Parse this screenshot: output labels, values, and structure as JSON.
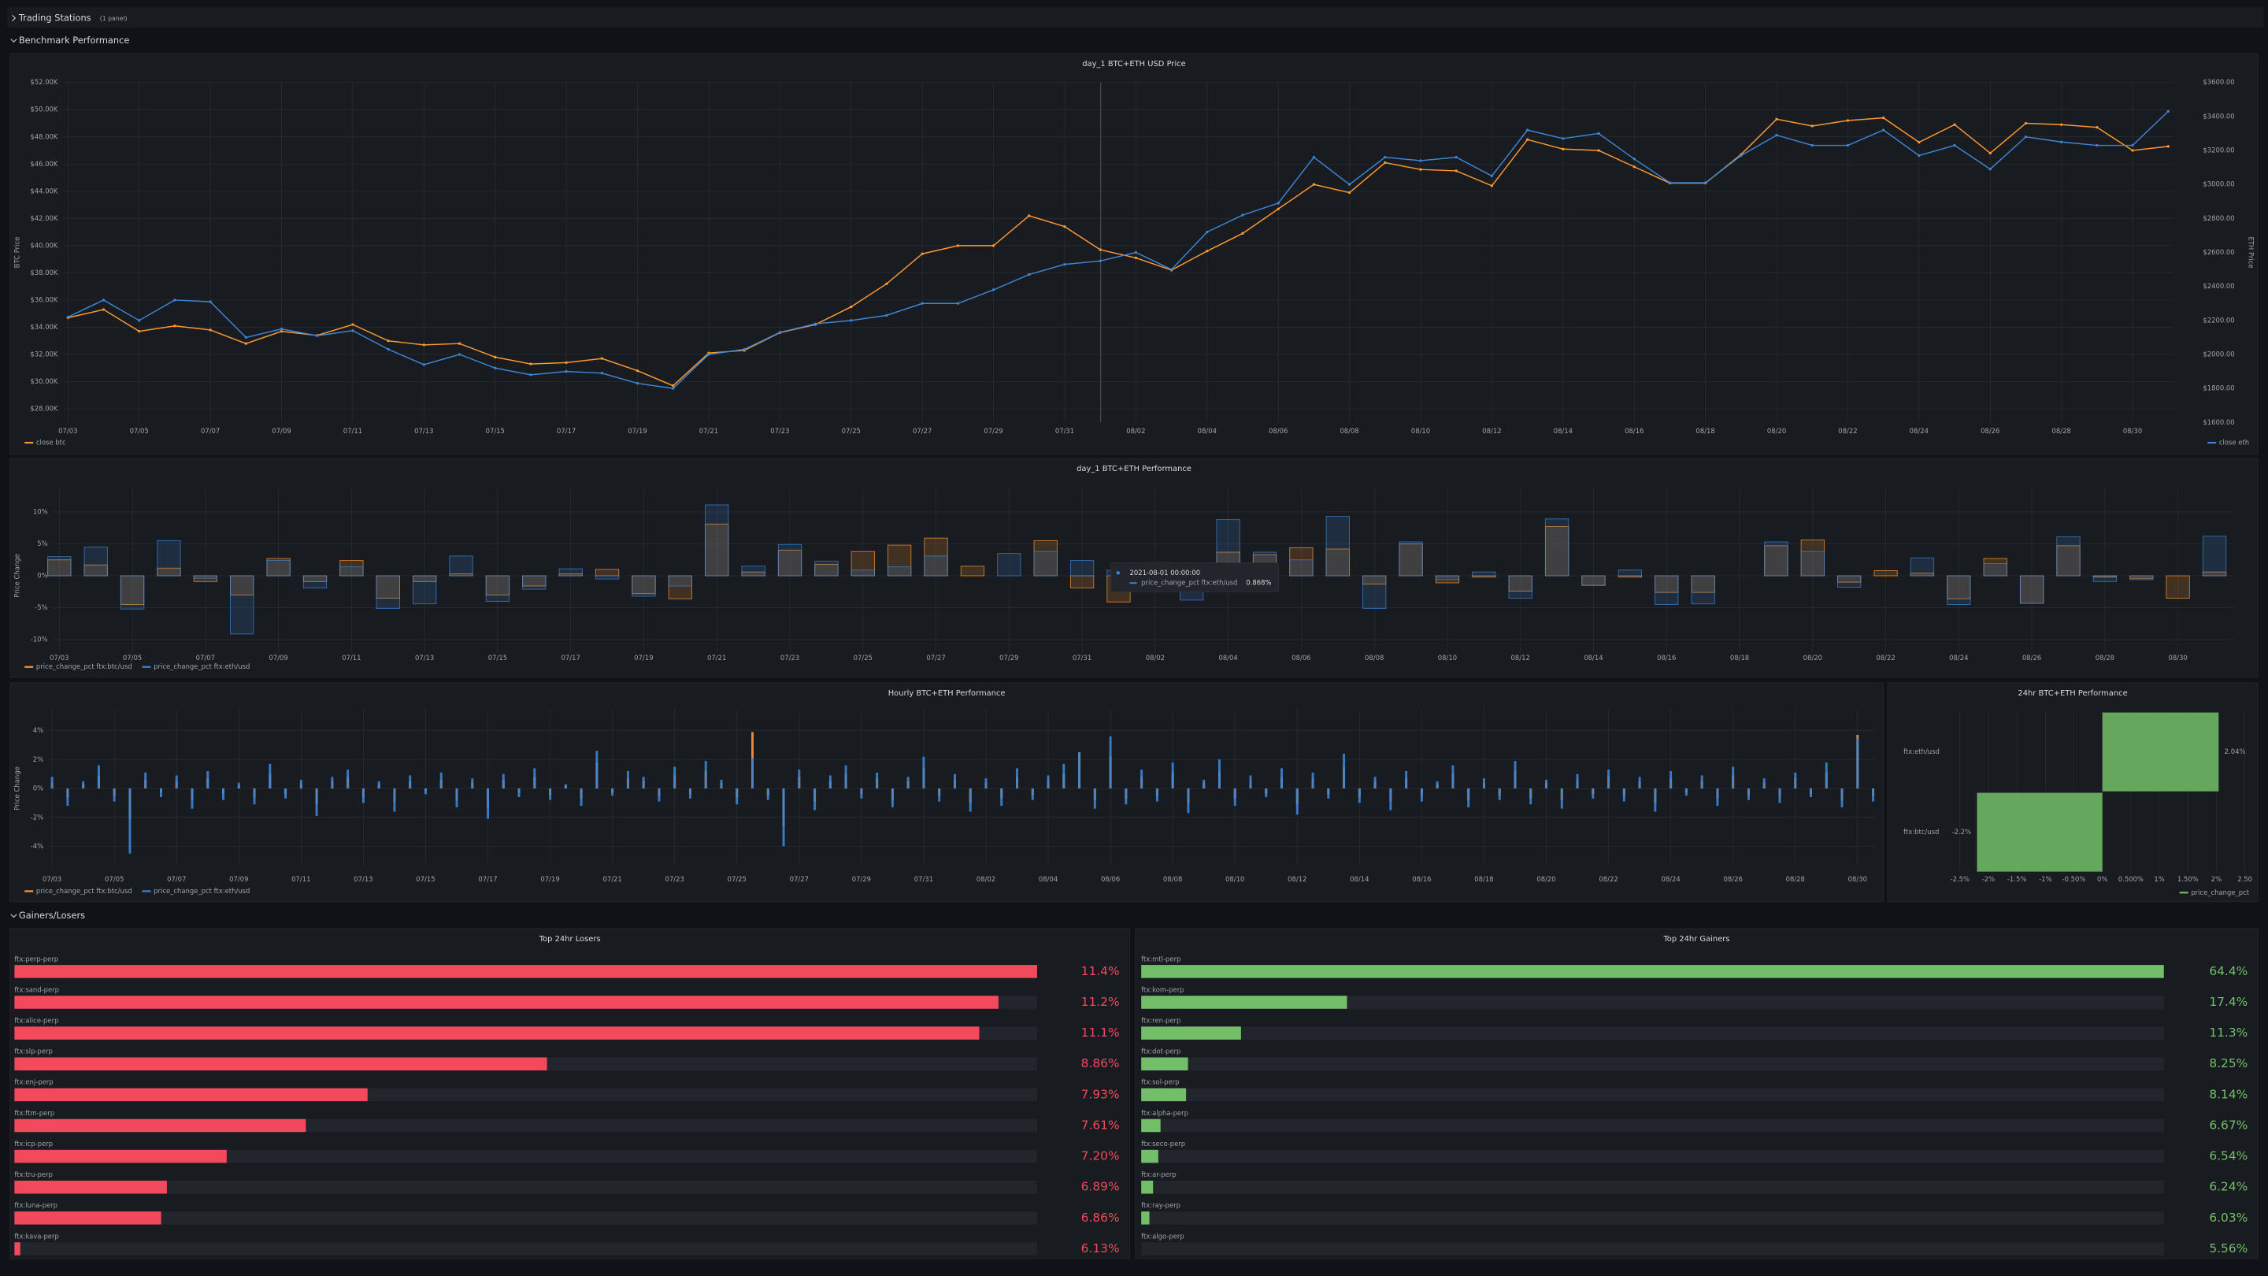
{
  "rows": [
    {
      "title": "Trading Stations",
      "note": "(1 panel)"
    },
    {
      "title": "Benchmark Performance"
    },
    {
      "title": "Gainers/Losers"
    }
  ],
  "chart_data": [
    {
      "type": "line",
      "title": "day_1 BTC+ETH USD Price",
      "ylabel": "BTC Price",
      "y2label": "ETH Price",
      "grid": true,
      "categories": [
        "07/03",
        null,
        "07/05",
        null,
        "07/07",
        null,
        "07/09",
        null,
        "07/11",
        null,
        "07/13",
        null,
        "07/15",
        null,
        "07/17",
        null,
        "07/19",
        null,
        "07/21",
        null,
        "07/23",
        null,
        "07/25",
        null,
        "07/27",
        null,
        "07/29",
        null,
        "07/31",
        null,
        "08/02",
        null,
        "08/04",
        null,
        "08/06",
        null,
        "08/08",
        null,
        "08/10",
        null,
        "08/12",
        null,
        "08/14",
        null,
        "08/16",
        null,
        "08/18",
        null,
        "08/20",
        null,
        "08/22",
        null,
        "08/24",
        null,
        "08/26",
        null,
        "08/28",
        null,
        "08/30",
        null
      ],
      "series": [
        {
          "name": "close btc",
          "color": "#ff9830",
          "values": [
            34700,
            35300,
            33700,
            34100,
            33800,
            32800,
            33700,
            33400,
            34200,
            33000,
            32700,
            32800,
            31800,
            31300,
            31400,
            31700,
            30800,
            29700,
            32100,
            32300,
            33600,
            34200,
            35500,
            37200,
            39400,
            40000,
            40000,
            42200,
            41400,
            39700,
            39100,
            38200,
            39600,
            40900,
            42700,
            44500,
            43900,
            46100,
            45600,
            45500,
            44400,
            47800,
            47100,
            47000,
            45800,
            44600,
            44600,
            46700,
            49300,
            48800,
            49200,
            49400,
            47600,
            48900,
            46800,
            49000,
            48900,
            48700,
            47000,
            47300
          ]
        },
        {
          "name": "close eth",
          "color": "#3d85d6",
          "axis": "y2",
          "values": [
            2220,
            2320,
            2200,
            2320,
            2310,
            2100,
            2150,
            2110,
            2140,
            2030,
            1940,
            2000,
            1920,
            1880,
            1900,
            1890,
            1830,
            1800,
            2000,
            2030,
            2130,
            2180,
            2200,
            2230,
            2300,
            2300,
            2380,
            2470,
            2530,
            2550,
            2600,
            2500,
            2720,
            2820,
            2890,
            3160,
            3000,
            3160,
            3140,
            3160,
            3050,
            3320,
            3270,
            3300,
            3150,
            3010,
            3010,
            3170,
            3290,
            3230,
            3230,
            3320,
            3170,
            3230,
            3090,
            3280,
            3250,
            3230,
            3230,
            3430
          ]
        }
      ],
      "ylim": [
        27000,
        52000
      ],
      "yticks": [
        {
          "value": 28000,
          "label": "$28.00K"
        },
        {
          "value": 30000,
          "label": "$30.00K"
        },
        {
          "value": 32000,
          "label": "$32.00K"
        },
        {
          "value": 34000,
          "label": "$34.00K"
        },
        {
          "value": 36000,
          "label": "$36.00K"
        },
        {
          "value": 38000,
          "label": "$38.00K"
        },
        {
          "value": 40000,
          "label": "$40.00K"
        },
        {
          "value": 42000,
          "label": "$42.00K"
        },
        {
          "value": 44000,
          "label": "$44.00K"
        },
        {
          "value": 46000,
          "label": "$46.00K"
        },
        {
          "value": 48000,
          "label": "$48.00K"
        },
        {
          "value": 50000,
          "label": "$50.00K"
        },
        {
          "value": 52000,
          "label": "$52.00K"
        }
      ],
      "y2lim": [
        1600,
        3600
      ],
      "y2ticks": [
        {
          "value": 1600,
          "label": "$1600.00"
        },
        {
          "value": 1800,
          "label": "$1800.00"
        },
        {
          "value": 2000,
          "label": "$2000.00"
        },
        {
          "value": 2200,
          "label": "$2200.00"
        },
        {
          "value": 2400,
          "label": "$2400.00"
        },
        {
          "value": 2600,
          "label": "$2600.00"
        },
        {
          "value": 2800,
          "label": "$2800.00"
        },
        {
          "value": 3000,
          "label": "$3000.00"
        },
        {
          "value": 3200,
          "label": "$3200.00"
        },
        {
          "value": 3400,
          "label": "$3400.00"
        },
        {
          "value": 3600,
          "label": "$3600.00"
        }
      ]
    },
    {
      "type": "bar",
      "title": "day_1 BTC+ETH Performance",
      "ylabel": "Price Change",
      "grid": true,
      "categories": [
        "07/03",
        null,
        "07/05",
        null,
        "07/07",
        null,
        "07/09",
        null,
        "07/11",
        null,
        "07/13",
        null,
        "07/15",
        null,
        "07/17",
        null,
        "07/19",
        null,
        "07/21",
        null,
        "07/23",
        null,
        "07/25",
        null,
        "07/27",
        null,
        "07/29",
        null,
        "07/31",
        null,
        "08/02",
        null,
        "08/04",
        null,
        "08/06",
        null,
        "08/08",
        null,
        "08/10",
        null,
        "08/12",
        null,
        "08/14",
        null,
        "08/16",
        null,
        "08/18",
        null,
        "08/20",
        null,
        "08/22",
        null,
        "08/24",
        null,
        "08/26",
        null,
        "08/28",
        null,
        "08/30",
        null
      ],
      "series": [
        {
          "name": "price_change_pct ftx:btc/usd",
          "color": "#ff9830",
          "values": [
            2.5,
            1.7,
            -4.5,
            1.2,
            -0.9,
            -3.0,
            2.7,
            -0.9,
            2.4,
            -3.5,
            -0.9,
            0.3,
            -3.0,
            -1.6,
            0.3,
            1.0,
            -2.8,
            -3.6,
            8.1,
            0.6,
            4.0,
            1.8,
            3.8,
            4.8,
            5.9,
            1.5,
            0,
            5.5,
            -1.9,
            -4.1,
            -1.5,
            -2.3,
            3.7,
            3.3,
            4.4,
            4.2,
            -1.3,
            5.0,
            -1.1,
            -0.2,
            -2.4,
            7.7,
            -1.5,
            -0.2,
            -2.6,
            -2.6,
            0,
            4.7,
            5.6,
            -1.0,
            0.8,
            0.4,
            -3.6,
            2.7,
            -4.3,
            4.7,
            -0.2,
            -0.4,
            -3.5,
            0.6
          ]
        },
        {
          "name": "price_change_pct ftx:eth/usd",
          "color": "#3d85d6",
          "values": [
            3.0,
            4.5,
            -5.2,
            5.5,
            -0.4,
            -9.1,
            2.4,
            -1.9,
            1.4,
            -5.1,
            -4.4,
            3.1,
            -4.0,
            -2.1,
            1.1,
            -0.5,
            -3.2,
            -1.6,
            11.1,
            1.5,
            4.9,
            2.3,
            0.9,
            1.4,
            3.1,
            0,
            3.5,
            3.8,
            2.4,
            0.868,
            2.0,
            -3.8,
            8.8,
            3.7,
            2.5,
            9.3,
            -5.1,
            5.3,
            -0.6,
            0.6,
            -3.5,
            8.9,
            -1.5,
            0.9,
            -4.5,
            -4.4,
            0,
            5.3,
            3.8,
            -1.8,
            0,
            2.8,
            -4.5,
            1.9,
            -4.3,
            6.1,
            -0.9,
            -0.6,
            0,
            6.2
          ]
        }
      ],
      "ylim": [
        -12,
        12
      ],
      "yticks": [
        {
          "value": 10,
          "label": "10%"
        },
        {
          "value": 5,
          "label": "5%"
        },
        {
          "value": 0,
          "label": "0%"
        },
        {
          "value": -5,
          "label": "-5%"
        },
        {
          "value": -10,
          "label": "-10%"
        }
      ],
      "tooltip": {
        "time": "2021-08-01 00:00:00",
        "value_label": "0.868%"
      }
    },
    {
      "type": "bar",
      "title": "Hourly BTC+ETH Performance",
      "ylabel": "Price Change",
      "grid": true,
      "categories": [
        "07/03",
        null,
        null,
        null,
        "07/05",
        null,
        null,
        null,
        "07/07",
        null,
        null,
        null,
        "07/09",
        null,
        null,
        null,
        "07/11",
        null,
        null,
        null,
        "07/13",
        null,
        null,
        null,
        "07/15",
        null,
        null,
        null,
        "07/17",
        null,
        null,
        null,
        "07/19",
        null,
        null,
        null,
        "07/21",
        null,
        null,
        null,
        "07/23",
        null,
        null,
        null,
        "07/25",
        null,
        null,
        null,
        "07/27",
        null,
        null,
        null,
        "07/29",
        null,
        null,
        null,
        "07/31",
        null,
        null,
        null,
        "08/02",
        null,
        null,
        null,
        "08/04",
        null,
        null,
        null,
        "08/06",
        null,
        null,
        null,
        "08/08",
        null,
        null,
        null,
        "08/10",
        null,
        null,
        null,
        "08/12",
        null,
        null,
        null,
        "08/14",
        null,
        null,
        null,
        "08/16",
        null,
        null,
        null,
        "08/18",
        null,
        null,
        null,
        "08/20",
        null,
        null,
        null,
        "08/22",
        null,
        null,
        null,
        "08/24",
        null,
        null,
        null,
        "08/26",
        null,
        null,
        null,
        "08/28",
        null,
        null,
        null,
        "08/30",
        null
      ],
      "series": [
        {
          "name": "price_change_pct ftx:btc/usd",
          "color": "#ff9830",
          "values": [
            0.4,
            -0.6,
            0.3,
            0.9,
            -0.5,
            -2.1,
            0.6,
            -0.3,
            0.5,
            -0.8,
            0.7,
            -0.4,
            0.2,
            -0.6,
            1.0,
            -0.4,
            0.3,
            -1.1,
            0.5,
            0.8,
            -0.6,
            0.3,
            -0.9,
            0.5,
            -0.2,
            0.6,
            -0.8,
            0.4,
            -1.3,
            0.6,
            -0.3,
            0.8,
            -0.5,
            0.2,
            -0.7,
            1.8,
            -0.3,
            0.7,
            0.5,
            -0.5,
            0.9,
            -0.4,
            1.2,
            0.4,
            -0.6,
            3.9,
            -0.5,
            -2.6,
            0.8,
            -0.9,
            0.5,
            1.0,
            -0.4,
            0.7,
            -0.8,
            0.5,
            1.4,
            -0.5,
            0.6,
            -1.0,
            0.4,
            -0.7,
            0.8,
            -0.5,
            0.5,
            1.0,
            2.5,
            -0.8,
            2.2,
            -0.7,
            0.8,
            -0.5,
            1.1,
            -1.0,
            0.4,
            1.2,
            -0.7,
            0.5,
            -0.4,
            0.8,
            -1.1,
            0.7,
            -0.4,
            1.5,
            -0.6,
            0.5,
            -0.9,
            0.7,
            -0.5,
            0.3,
            1.0,
            -0.8,
            0.4,
            -0.5,
            1.2,
            -0.7,
            0.4,
            -0.8,
            0.6,
            -0.4,
            0.8,
            -0.5,
            0.5,
            -1.0,
            0.7,
            -0.3,
            0.5,
            -0.7,
            0.9,
            -0.5,
            0.4,
            -0.6,
            0.7,
            -0.4,
            1.1,
            -0.8,
            3.7,
            -0.5
          ]
        },
        {
          "name": "price_change_pct ftx:eth/usd",
          "color": "#3d85d6",
          "values": [
            0.8,
            -1.2,
            0.5,
            1.6,
            -0.9,
            -4.5,
            1.1,
            -0.6,
            0.9,
            -1.4,
            1.2,
            -0.8,
            0.4,
            -1.1,
            1.7,
            -0.7,
            0.6,
            -1.9,
            0.8,
            1.3,
            -1.0,
            0.5,
            -1.6,
            0.9,
            -0.4,
            1.1,
            -1.3,
            0.7,
            -2.1,
            1.0,
            -0.6,
            1.4,
            -0.8,
            0.3,
            -1.2,
            2.6,
            -0.5,
            1.2,
            0.8,
            -0.9,
            1.5,
            -0.7,
            1.9,
            0.6,
            -1.1,
            2.1,
            -0.8,
            -4.0,
            1.3,
            -1.5,
            0.9,
            1.6,
            -0.7,
            1.1,
            -1.3,
            0.8,
            2.2,
            -0.9,
            1.0,
            -1.6,
            0.7,
            -1.2,
            1.4,
            -0.8,
            0.9,
            1.7,
            2.5,
            -1.4,
            3.6,
            -1.1,
            1.3,
            -0.9,
            1.8,
            -1.7,
            0.6,
            2.0,
            -1.2,
            0.9,
            -0.6,
            1.4,
            -1.8,
            1.1,
            -0.7,
            2.4,
            -1.0,
            0.8,
            -1.5,
            1.2,
            -0.9,
            0.5,
            1.6,
            -1.3,
            0.7,
            -0.8,
            1.9,
            -1.1,
            0.6,
            -1.4,
            1.0,
            -0.7,
            1.3,
            -0.9,
            0.8,
            -1.6,
            1.2,
            -0.5,
            0.9,
            -1.2,
            1.5,
            -0.8,
            0.7,
            -1.0,
            1.1,
            -0.6,
            1.8,
            -1.3,
            3.5,
            -0.9
          ]
        }
      ],
      "ylim": [
        -5,
        5
      ],
      "yticks": [
        {
          "value": 4,
          "label": "4%"
        },
        {
          "value": 2,
          "label": "2%"
        },
        {
          "value": 0,
          "label": "0%"
        },
        {
          "value": -2,
          "label": "-2%"
        },
        {
          "value": -4,
          "label": "-4%"
        }
      ]
    },
    {
      "type": "hbar",
      "title": "24hr BTC+ETH Performance",
      "grid": true,
      "categories": [
        "ftx:eth/usd",
        "ftx:btc/usd"
      ],
      "series": [
        {
          "name": "price_change_pct",
          "color": "#73bf69",
          "values": [
            2.04,
            -2.2
          ],
          "value_labels": [
            "2.04%",
            "-2.2%"
          ]
        }
      ],
      "xlim": [
        -2.5,
        2.5
      ],
      "xticks": [
        {
          "value": -2.5,
          "label": "-2.5%"
        },
        {
          "value": -2,
          "label": "-2%"
        },
        {
          "value": -1.5,
          "label": "-1.5%"
        },
        {
          "value": -1,
          "label": "-1%"
        },
        {
          "value": -0.5,
          "label": "-0.50%"
        },
        {
          "value": 0,
          "label": "0%"
        },
        {
          "value": 0.5,
          "label": "0.500%"
        },
        {
          "value": 1,
          "label": "1%"
        },
        {
          "value": 1.5,
          "label": "1.50%"
        },
        {
          "value": 2,
          "label": "2%"
        },
        {
          "value": 2.5,
          "label": "2.50"
        }
      ]
    },
    {
      "type": "bargauge",
      "title": "Top 24hr Losers",
      "color": "#f2495c",
      "categories": [
        "ftx:perp-perp",
        "ftx:sand-perp",
        "ftx:alice-perp",
        "ftx:slp-perp",
        "ftx:enj-perp",
        "ftx:ftm-perp",
        "ftx:icp-perp",
        "ftx:tru-perp",
        "ftx:luna-perp",
        "ftx:kava-perp"
      ],
      "values": [
        11.4,
        11.2,
        11.1,
        8.86,
        7.93,
        7.61,
        7.2,
        6.89,
        6.86,
        6.13
      ],
      "value_labels": [
        "11.4%",
        "11.2%",
        "11.1%",
        "8.86%",
        "7.93%",
        "7.61%",
        "7.20%",
        "6.89%",
        "6.86%",
        "6.13%"
      ],
      "xlim": [
        6.1,
        11.4
      ]
    },
    {
      "type": "bargauge",
      "title": "Top 24hr Gainers",
      "color": "#73bf69",
      "categories": [
        "ftx:mtl-perp",
        "ftx:kom-perp",
        "ftx:ren-perp",
        "ftx:dot-perp",
        "ftx:sol-perp",
        "ftx:alpha-perp",
        "ftx:seco-perp",
        "ftx:ar-perp",
        "ftx:ray-perp",
        "ftx:algo-perp"
      ],
      "values": [
        64.4,
        17.4,
        11.3,
        8.25,
        8.14,
        6.67,
        6.54,
        6.24,
        6.03,
        5.56
      ],
      "value_labels": [
        "64.4%",
        "17.4%",
        "11.3%",
        "8.25%",
        "8.14%",
        "6.67%",
        "6.54%",
        "6.24%",
        "6.03%",
        "5.56%"
      ],
      "xlim": [
        5.56,
        64.4
      ]
    }
  ]
}
